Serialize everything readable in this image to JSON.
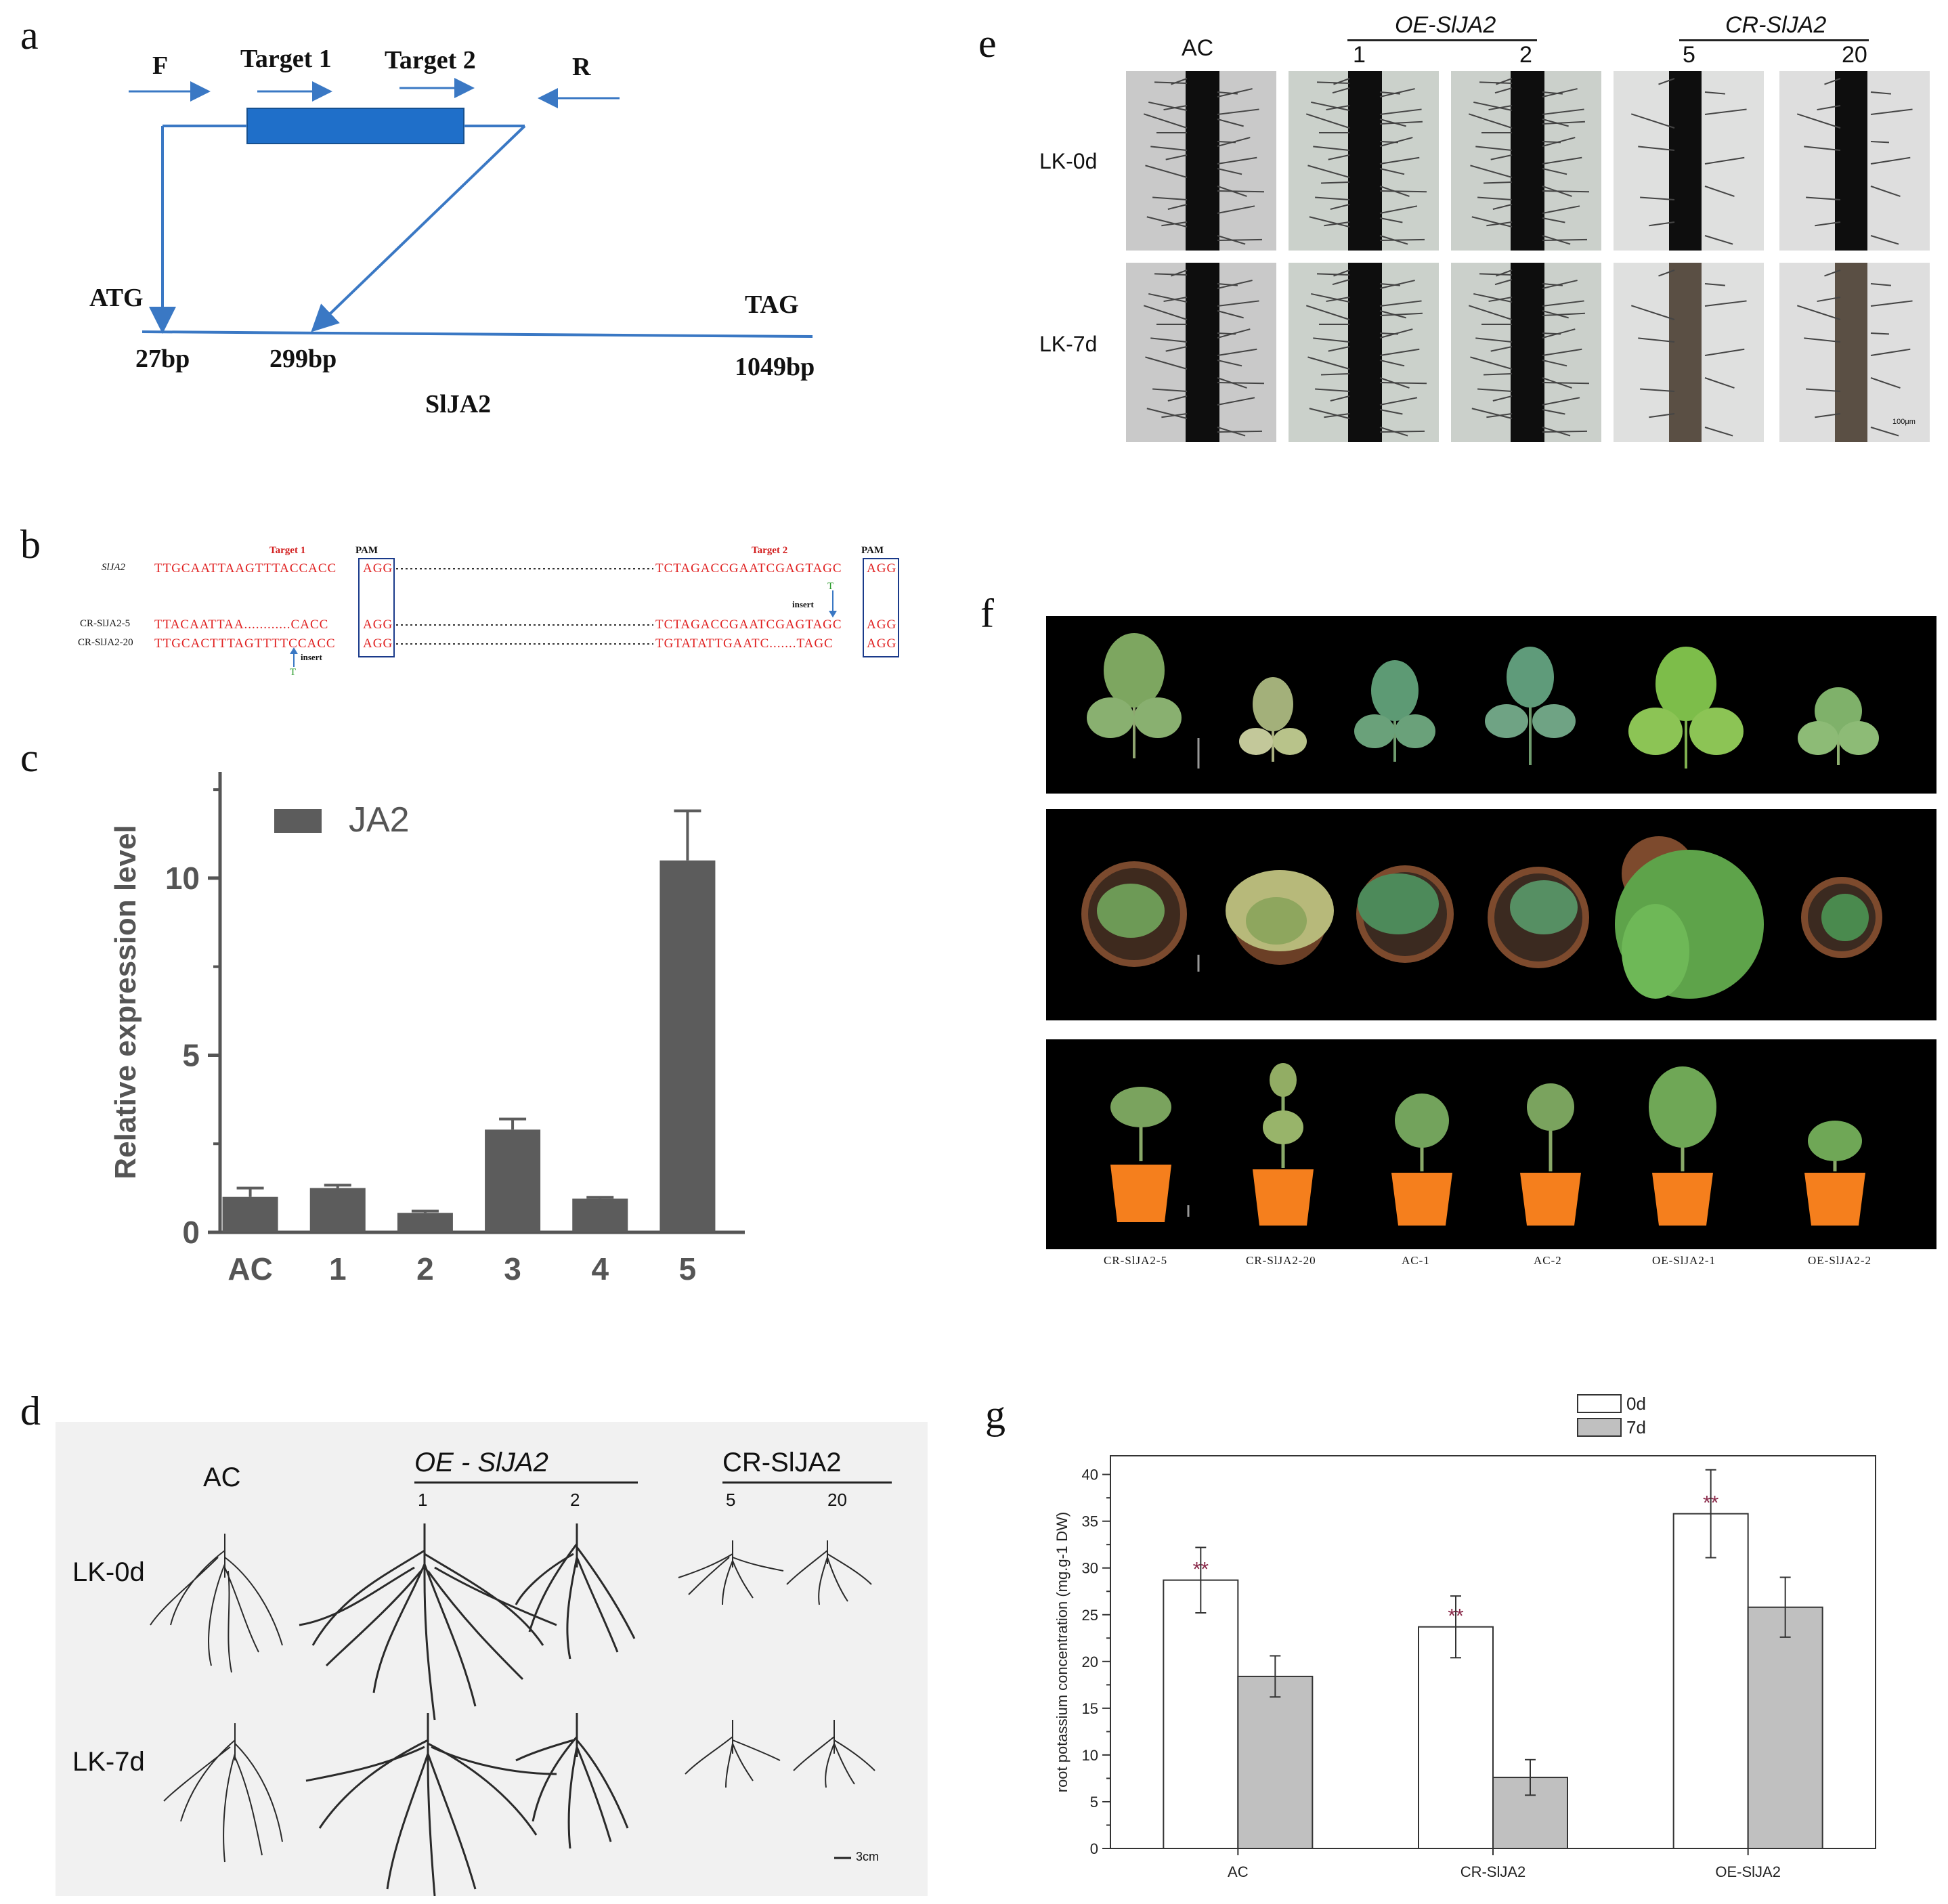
{
  "panels": {
    "a": {
      "label": "a",
      "primers": [
        "F",
        "Target 1",
        "Target 2",
        "R"
      ],
      "start_codon": "ATG",
      "stop_codon": "TAG",
      "positions": [
        "27bp",
        "299bp",
        "1049bp"
      ],
      "gene": "SlJA2"
    },
    "b": {
      "label": "b",
      "target1": "Target 1",
      "target2": "Target 2",
      "pam": "PAM",
      "insert": "insert",
      "t_insert": "T",
      "rows": [
        {
          "name": "SlJA2",
          "left": "TTGCAATTAAGTTTACCACC",
          "pam1": "AGG",
          "right": "TCTAGACCGAATCGAGTAGC",
          "pam2": "AGG"
        },
        {
          "name": "CR-SlJA2-5",
          "left": "TTACAATTAA............CACC",
          "pam1": "AGG",
          "right": "TCTAGACCGAATCGAGTAGC",
          "pam2": "AGG"
        },
        {
          "name": "CR-SlJA2-20",
          "left": "TTGCACTTTAGTTTTCCACC",
          "pam1": "AGG",
          "right": "TGTATATTGAATC.......TAGC",
          "pam2": "AGG"
        }
      ]
    },
    "c": {
      "label": "c"
    },
    "d": {
      "label": "d",
      "groups": [
        "AC",
        "OE - SlJA2",
        "CR-SlJA2"
      ],
      "sub_lines": [
        "1",
        "2",
        "5",
        "20"
      ],
      "rows": [
        "LK-0d",
        "LK-7d"
      ],
      "scale": "3cm"
    },
    "e": {
      "label": "e",
      "groups": [
        "AC",
        "OE-SlJA2",
        "CR-SlJA2"
      ],
      "sub_lines": [
        "1",
        "2",
        "5",
        "20"
      ],
      "rows": [
        "LK-0d",
        "LK-7d"
      ],
      "scale": "100μm"
    },
    "f": {
      "label": "f",
      "captions": [
        "CR-SlJA2-5",
        "CR-SlJA2-20",
        "AC-1",
        "AC-2",
        "OE-SlJA2-1",
        "OE-SlJA2-2"
      ]
    },
    "g": {
      "label": "g"
    }
  },
  "chart_data": [
    {
      "id": "c",
      "type": "bar",
      "categories": [
        "AC",
        "1",
        "2",
        "3",
        "4",
        "5"
      ],
      "series": [
        {
          "name": "JA2",
          "values": [
            1.0,
            1.25,
            0.55,
            2.9,
            0.95,
            10.5
          ],
          "errors": [
            0.25,
            0.08,
            0.05,
            0.3,
            0.04,
            1.4
          ]
        }
      ],
      "xlabel": "",
      "ylabel": "Relative expression level",
      "ylim": [
        0,
        13
      ],
      "yticks": [
        0,
        5,
        10
      ],
      "legend": "top-left",
      "colors": [
        "#5c5c5c"
      ]
    },
    {
      "id": "g",
      "type": "bar",
      "categories": [
        "AC",
        "CR-SlJA2",
        "OE-SlJA2"
      ],
      "series": [
        {
          "name": "0d",
          "values": [
            28.7,
            23.7,
            35.8
          ],
          "errors": [
            3.5,
            3.3,
            4.7
          ]
        },
        {
          "name": "7d",
          "values": [
            18.4,
            7.6,
            25.8
          ],
          "errors": [
            2.2,
            1.9,
            3.2
          ]
        }
      ],
      "significance": [
        "**",
        "**",
        "**"
      ],
      "xlabel": "",
      "ylabel": "root potassium concentration (mg.g-1 DW)",
      "ylim": [
        0,
        42
      ],
      "yticks": [
        0,
        5,
        10,
        15,
        20,
        25,
        30,
        35,
        40
      ],
      "legend": "top-right",
      "colors": [
        "#ffffff",
        "#c0c0c0"
      ]
    }
  ]
}
